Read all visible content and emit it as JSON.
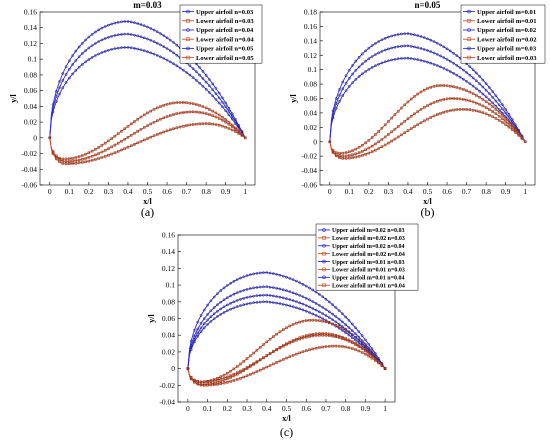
{
  "colors": {
    "upper": "#2b2bd6",
    "lower": "#c8502c",
    "upper_dark": "#1a1a80",
    "lower_dark": "#8a2a10"
  },
  "chart_data": [
    {
      "id": "a",
      "type": "line",
      "title": "m=0.03",
      "panel_label": "(a)",
      "xlabel": "x/l",
      "ylabel": "y/l",
      "xlim": [
        -0.05,
        1.05
      ],
      "ylim": [
        -0.06,
        0.16
      ],
      "xticks": [
        0,
        0.1,
        0.2,
        0.3,
        0.4,
        0.5,
        0.6,
        0.7,
        0.8,
        0.9,
        1
      ],
      "xtick_labels": [
        "0",
        "0.1",
        "0.2",
        "0.3",
        "0.4",
        "0.5",
        "0.6",
        "0.7",
        "0.8",
        "0.9",
        "1"
      ],
      "yticks": [
        -0.06,
        -0.04,
        -0.02,
        0,
        0.02,
        0.04,
        0.06,
        0.08,
        0.1,
        0.12,
        0.14,
        0.16
      ],
      "ytick_labels": [
        "-0.06",
        "-0.04",
        "-0.02",
        "0",
        "0.02",
        "0.04",
        "0.06",
        "0.08",
        "0.1",
        "0.12",
        "0.14",
        "0.16"
      ],
      "legend_position": "top-right",
      "series": [
        {
          "name": "Upper airfoil n=0.03",
          "kind": "upper",
          "peak_x": 0.4,
          "peak_y": 0.115
        },
        {
          "name": "Lower airfoil n=0.03",
          "kind": "lower",
          "peak_x": 0.8,
          "peak_y": 0.018,
          "min_x": 0.08,
          "min_y": -0.033
        },
        {
          "name": "Upper airfoil n=0.04",
          "kind": "upper",
          "peak_x": 0.4,
          "peak_y": 0.132
        },
        {
          "name": "Lower airfoil n=0.04",
          "kind": "lower",
          "peak_x": 0.73,
          "peak_y": 0.033,
          "min_x": 0.08,
          "min_y": -0.03
        },
        {
          "name": "Upper airfoil n=0.05",
          "kind": "upper",
          "peak_x": 0.4,
          "peak_y": 0.148
        },
        {
          "name": "Lower airfoil n=0.05",
          "kind": "lower",
          "peak_x": 0.67,
          "peak_y": 0.045,
          "min_x": 0.07,
          "min_y": -0.027
        }
      ]
    },
    {
      "id": "b",
      "type": "line",
      "title": "n=0.05",
      "panel_label": "(b)",
      "xlabel": "x/l",
      "ylabel": "y/l",
      "xlim": [
        -0.05,
        1.05
      ],
      "ylim": [
        -0.06,
        0.18
      ],
      "xticks": [
        0,
        0.1,
        0.2,
        0.3,
        0.4,
        0.5,
        0.6,
        0.7,
        0.8,
        0.9,
        1
      ],
      "xtick_labels": [
        "0",
        "0.1",
        "0.2",
        "0.3",
        "0.4",
        "0.5",
        "0.6",
        "0.7",
        "0.8",
        "0.9",
        "1"
      ],
      "yticks": [
        -0.06,
        -0.04,
        -0.02,
        0,
        0.02,
        0.04,
        0.06,
        0.08,
        0.1,
        0.12,
        0.14,
        0.16,
        0.18
      ],
      "ytick_labels": [
        "-0.06",
        "-0.04",
        "-0.02",
        "0",
        "0.02",
        "0.04",
        "0.06",
        "0.08",
        "0.1",
        "0.12",
        "0.14",
        "0.16",
        "0.18"
      ],
      "legend_position": "top-right",
      "series": [
        {
          "name": "Upper airfoil m=0.01",
          "kind": "upper",
          "peak_x": 0.4,
          "peak_y": 0.116
        },
        {
          "name": "Lower airfoil m=0.01",
          "kind": "lower",
          "peak_x": 0.68,
          "peak_y": 0.045,
          "min_x": 0.07,
          "min_y": -0.023
        },
        {
          "name": "Upper airfoil m=0.02",
          "kind": "upper",
          "peak_x": 0.4,
          "peak_y": 0.133
        },
        {
          "name": "Lower airfoil m=0.02",
          "kind": "lower",
          "peak_x": 0.63,
          "peak_y": 0.06,
          "min_x": 0.06,
          "min_y": -0.02
        },
        {
          "name": "Upper airfoil m=0.03",
          "kind": "upper",
          "peak_x": 0.4,
          "peak_y": 0.15
        },
        {
          "name": "Lower airfoil m=0.03",
          "kind": "lower",
          "peak_x": 0.57,
          "peak_y": 0.078,
          "min_x": 0.05,
          "min_y": -0.016
        }
      ]
    },
    {
      "id": "c",
      "type": "line",
      "title": "",
      "panel_label": "(c)",
      "xlabel": "x/l",
      "ylabel": "y/l",
      "xlim": [
        -0.05,
        1.05
      ],
      "ylim": [
        -0.04,
        0.16
      ],
      "xticks": [
        0,
        0.1,
        0.2,
        0.3,
        0.4,
        0.5,
        0.6,
        0.7,
        0.8,
        0.9,
        1
      ],
      "xtick_labels": [
        "0",
        "0.1",
        "0.2",
        "0.3",
        "0.4",
        "0.5",
        "0.6",
        "0.7",
        "0.8",
        "0.9",
        "1"
      ],
      "yticks": [
        -0.04,
        -0.02,
        0,
        0.02,
        0.04,
        0.06,
        0.08,
        0.1,
        0.12,
        0.14,
        0.16
      ],
      "ytick_labels": [
        "-0.04",
        "-0.02",
        "0",
        "0.02",
        "0.04",
        "0.06",
        "0.08",
        "0.1",
        "0.12",
        "0.14",
        "0.16"
      ],
      "legend_position": "top-right",
      "series": [
        {
          "name": "Upper airfoil m=0.02 n=0.03",
          "kind": "upper",
          "peak_x": 0.4,
          "peak_y": 0.08
        },
        {
          "name": "Lower airfoil m=0.02 n=0.03",
          "kind": "lower",
          "peak_x": 0.68,
          "peak_y": 0.042,
          "min_x": 0.07,
          "min_y": -0.019
        },
        {
          "name": "Upper airfoil m=0.02 n=0.04",
          "kind": "upper",
          "peak_x": 0.4,
          "peak_y": 0.098
        },
        {
          "name": "Lower airfoil m=0.02 n=0.04",
          "kind": "lower",
          "peak_x": 0.63,
          "peak_y": 0.058,
          "min_x": 0.06,
          "min_y": -0.016
        },
        {
          "name": "Upper airfoil m=0.01 n=0.03",
          "kind": "upper",
          "peak_x": 0.4,
          "peak_y": 0.088
        },
        {
          "name": "Lower airfoil m=0.01 n=0.03",
          "kind": "lower",
          "peak_x": 0.75,
          "peak_y": 0.027,
          "min_x": 0.08,
          "min_y": -0.02
        },
        {
          "name": "Upper airfoil m=0.01 n=0.04",
          "kind": "upper",
          "peak_x": 0.4,
          "peak_y": 0.115
        },
        {
          "name": "Lower airfoil m=0.01 n=0.04",
          "kind": "lower",
          "peak_x": 0.68,
          "peak_y": 0.04,
          "min_x": 0.07,
          "min_y": -0.016
        }
      ]
    }
  ]
}
